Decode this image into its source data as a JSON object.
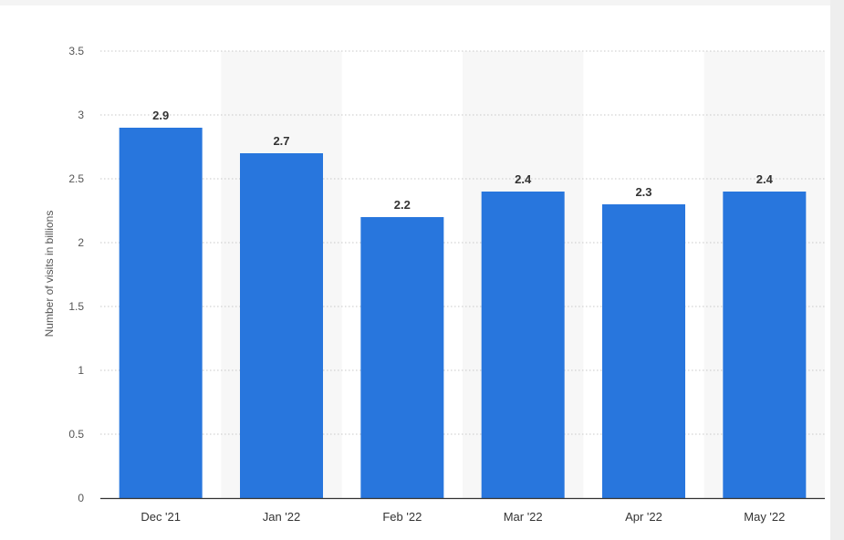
{
  "chart_data": {
    "type": "bar",
    "categories": [
      "Dec '21",
      "Jan '22",
      "Feb '22",
      "Mar '22",
      "Apr '22",
      "May '22"
    ],
    "values": [
      2.9,
      2.7,
      2.2,
      2.4,
      2.3,
      2.4
    ],
    "value_labels": [
      "2.9",
      "2.7",
      "2.2",
      "2.4",
      "2.3",
      "2.4"
    ],
    "xlabel": "",
    "ylabel": "Number of visits in billions",
    "ylim": [
      0,
      3.5
    ],
    "yticks": [
      0,
      0.5,
      1,
      1.5,
      2,
      2.5,
      3,
      3.5
    ],
    "ytick_labels": [
      "0",
      "0.5",
      "1",
      "1.5",
      "2",
      "2.5",
      "3",
      "3.5"
    ],
    "grid": true,
    "bar_color": "#2876dd",
    "alt_band_color": "#f7f7f7",
    "grid_color": "#c8c8c8"
  }
}
